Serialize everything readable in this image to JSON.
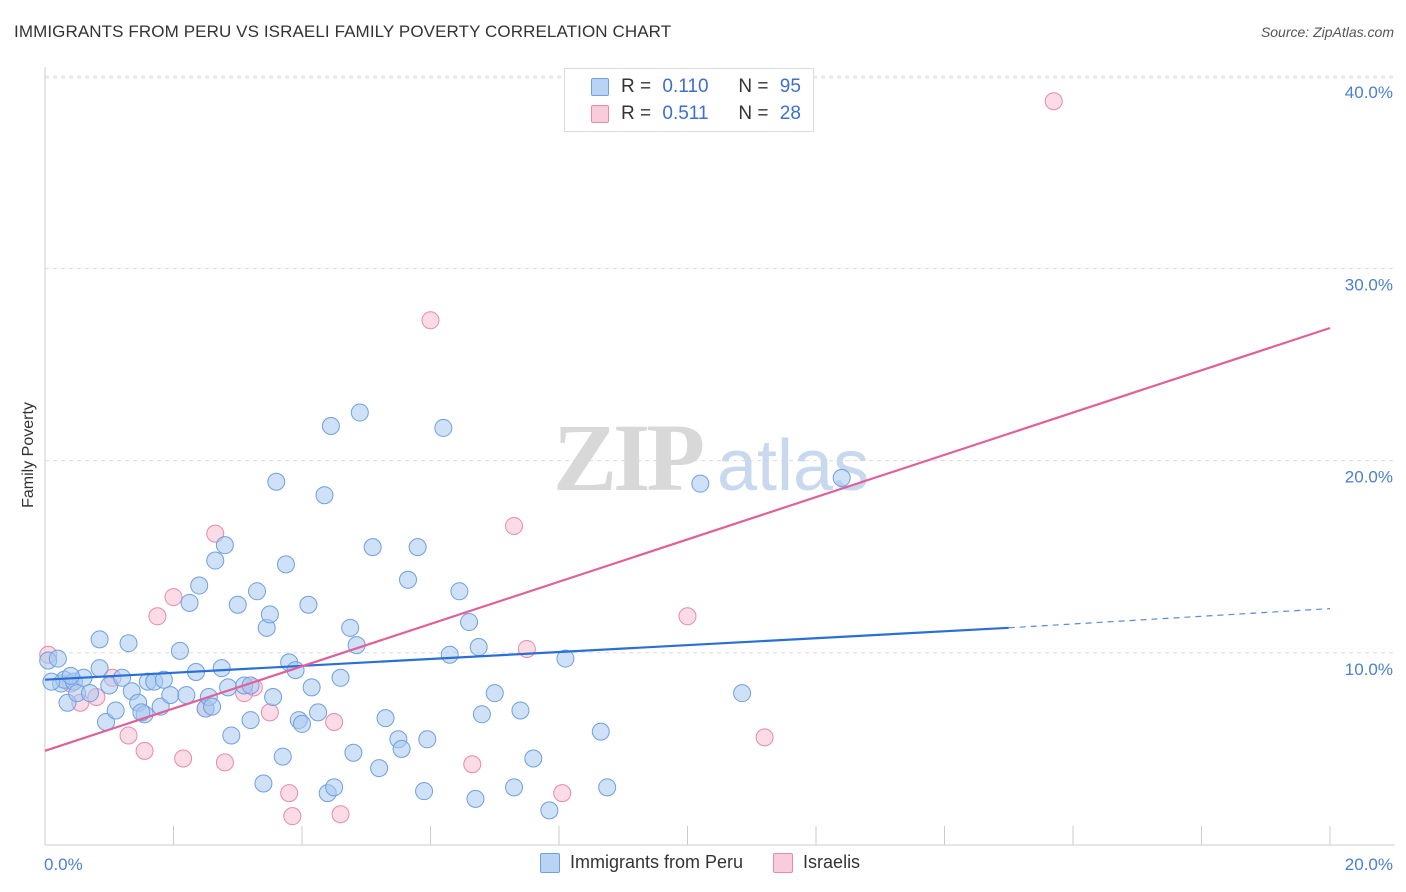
{
  "title": "IMMIGRANTS FROM PERU VS ISRAELI FAMILY POVERTY CORRELATION CHART",
  "source": "Source: ZipAtlas.com",
  "legend": {
    "rows": [
      {
        "r_label": "R =",
        "r_value": "0.110",
        "n_label": "N =",
        "n_value": "95"
      },
      {
        "r_label": "R =",
        "r_value": "0.511",
        "n_label": "N =",
        "n_value": "28"
      }
    ]
  },
  "bottom_legend": {
    "series1": "Immigrants from Peru",
    "series2": "Israelis"
  },
  "colors": {
    "peru_fill": "#a8c8f0",
    "peru_stroke": "#6f9fe0",
    "peru_line": "#2a6fd6",
    "isr_fill": "#f7bfd2",
    "isr_stroke": "#e88aaa",
    "isr_line": "#e0609a",
    "tick_text": "#4a7fd4",
    "grid": "#dcdcdc"
  },
  "chart_data": {
    "type": "scatter",
    "xlabel": "",
    "ylabel": "Family Poverty",
    "xlim": [
      0,
      20
    ],
    "ylim": [
      0,
      40
    ],
    "x_ticks": [
      "0.0%",
      "20.0%"
    ],
    "y_ticks": [
      "10.0%",
      "20.0%",
      "30.0%",
      "40.0%"
    ],
    "y_tick_values": [
      10,
      20,
      30,
      40
    ],
    "grid": true,
    "watermark": "ZIPatlas",
    "series": [
      {
        "name": "Immigrants from Peru",
        "points": [
          [
            0.05,
            9.6
          ],
          [
            0.2,
            9.7
          ],
          [
            0.25,
            8.4
          ],
          [
            0.3,
            8.6
          ],
          [
            0.35,
            7.4
          ],
          [
            0.45,
            8.5
          ],
          [
            0.5,
            7.9
          ],
          [
            0.6,
            8.7
          ],
          [
            0.7,
            7.9
          ],
          [
            0.85,
            9.2
          ],
          [
            0.85,
            10.7
          ],
          [
            0.95,
            6.4
          ],
          [
            1.0,
            8.3
          ],
          [
            1.1,
            7.0
          ],
          [
            1.2,
            8.7
          ],
          [
            1.3,
            10.5
          ],
          [
            1.35,
            8.0
          ],
          [
            1.45,
            7.4
          ],
          [
            1.55,
            6.8
          ],
          [
            1.6,
            8.5
          ],
          [
            1.7,
            8.5
          ],
          [
            1.8,
            7.2
          ],
          [
            1.85,
            8.6
          ],
          [
            1.95,
            7.8
          ],
          [
            2.1,
            10.1
          ],
          [
            2.2,
            7.8
          ],
          [
            2.25,
            12.6
          ],
          [
            2.35,
            9.0
          ],
          [
            2.4,
            13.5
          ],
          [
            2.5,
            7.1
          ],
          [
            2.55,
            7.7
          ],
          [
            2.65,
            14.8
          ],
          [
            2.75,
            9.2
          ],
          [
            2.8,
            15.6
          ],
          [
            2.85,
            8.2
          ],
          [
            2.9,
            5.7
          ],
          [
            3.0,
            12.5
          ],
          [
            3.1,
            8.3
          ],
          [
            3.2,
            6.5
          ],
          [
            3.3,
            13.2
          ],
          [
            3.4,
            3.2
          ],
          [
            3.45,
            11.3
          ],
          [
            3.5,
            12.0
          ],
          [
            3.55,
            7.7
          ],
          [
            3.6,
            18.9
          ],
          [
            3.7,
            4.6
          ],
          [
            3.75,
            14.6
          ],
          [
            3.8,
            9.5
          ],
          [
            3.9,
            9.1
          ],
          [
            3.95,
            6.5
          ],
          [
            4.1,
            12.5
          ],
          [
            4.15,
            8.2
          ],
          [
            4.25,
            6.9
          ],
          [
            4.35,
            18.2
          ],
          [
            4.4,
            2.7
          ],
          [
            4.45,
            21.8
          ],
          [
            4.5,
            3.0
          ],
          [
            4.6,
            8.7
          ],
          [
            4.75,
            11.3
          ],
          [
            4.8,
            4.8
          ],
          [
            4.85,
            10.4
          ],
          [
            4.9,
            22.5
          ],
          [
            5.1,
            15.5
          ],
          [
            5.3,
            6.6
          ],
          [
            5.5,
            5.5
          ],
          [
            5.55,
            5.0
          ],
          [
            5.65,
            13.8
          ],
          [
            5.8,
            15.5
          ],
          [
            5.9,
            2.8
          ],
          [
            5.95,
            5.5
          ],
          [
            6.2,
            21.7
          ],
          [
            6.3,
            9.9
          ],
          [
            6.45,
            13.2
          ],
          [
            6.6,
            11.6
          ],
          [
            6.7,
            2.4
          ],
          [
            6.75,
            10.3
          ],
          [
            7.0,
            7.9
          ],
          [
            7.3,
            3.0
          ],
          [
            7.4,
            7.0
          ],
          [
            7.85,
            1.8
          ],
          [
            8.1,
            9.7
          ],
          [
            8.65,
            5.9
          ],
          [
            8.75,
            3.0
          ],
          [
            10.2,
            18.8
          ],
          [
            10.85,
            7.9
          ],
          [
            12.4,
            19.1
          ],
          [
            0.1,
            8.5
          ],
          [
            0.4,
            8.8
          ],
          [
            1.5,
            6.9
          ],
          [
            2.6,
            7.2
          ],
          [
            3.2,
            8.3
          ],
          [
            4.0,
            6.3
          ],
          [
            5.2,
            4.0
          ],
          [
            6.8,
            6.8
          ],
          [
            7.6,
            4.5
          ]
        ]
      },
      {
        "name": "Israelis",
        "points": [
          [
            0.05,
            9.9
          ],
          [
            0.4,
            8.4
          ],
          [
            0.55,
            7.4
          ],
          [
            0.8,
            7.7
          ],
          [
            1.05,
            8.7
          ],
          [
            1.3,
            5.7
          ],
          [
            1.55,
            4.9
          ],
          [
            1.75,
            11.9
          ],
          [
            2.0,
            12.9
          ],
          [
            2.15,
            4.5
          ],
          [
            2.5,
            7.1
          ],
          [
            2.65,
            16.2
          ],
          [
            2.8,
            4.3
          ],
          [
            3.25,
            8.2
          ],
          [
            3.5,
            6.9
          ],
          [
            3.8,
            2.7
          ],
          [
            3.85,
            1.5
          ],
          [
            4.5,
            6.4
          ],
          [
            4.6,
            1.6
          ],
          [
            6.0,
            27.3
          ],
          [
            6.65,
            4.2
          ],
          [
            7.3,
            16.6
          ],
          [
            7.5,
            10.2
          ],
          [
            8.05,
            2.7
          ],
          [
            10.0,
            11.9
          ],
          [
            11.2,
            5.6
          ],
          [
            15.7,
            38.7
          ],
          [
            3.1,
            7.9
          ]
        ]
      }
    ],
    "trendlines": [
      {
        "series": "Immigrants from Peru",
        "x0": 0,
        "y0": 8.6,
        "x1": 15.0,
        "y1": 11.3,
        "dashed_to_x": 20,
        "dashed_to_y": 12.3
      },
      {
        "series": "Israelis",
        "x0": 0,
        "y0": 4.9,
        "x1": 20,
        "y1": 26.9
      }
    ]
  }
}
